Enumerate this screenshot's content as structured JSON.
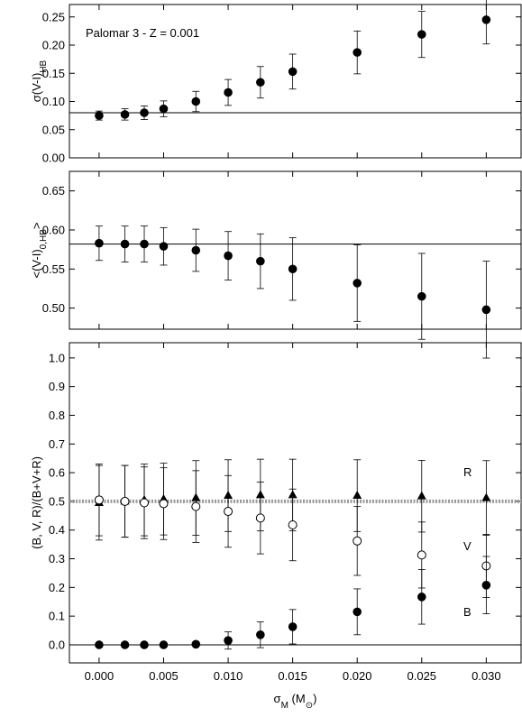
{
  "chart_data": [
    {
      "type": "scatter",
      "annotation": "Palomar 3 - Z = 0.001",
      "ylabel": [
        {
          "text": "σ(V-I)"
        },
        {
          "text": "HB",
          "sub": true
        }
      ],
      "xlim": [
        -0.0023,
        0.0327
      ],
      "xticks": [
        0,
        0.005,
        0.01,
        0.015,
        0.02,
        0.025,
        0.03
      ],
      "ylim": [
        0,
        0.272
      ],
      "yticks": [
        {
          "value": 0,
          "label": "0.00"
        },
        {
          "value": 0.05,
          "label": "0.05"
        },
        {
          "value": 0.1,
          "label": "0.10"
        },
        {
          "value": 0.15,
          "label": "0.15"
        },
        {
          "value": 0.2,
          "label": "0.20"
        },
        {
          "value": 0.25,
          "label": "0.25"
        }
      ],
      "hlines": [
        {
          "value": 0.08,
          "style": "solid"
        }
      ],
      "series": [
        {
          "marker": "filled-circle",
          "color": "#000000",
          "x": [
            0,
            0.002,
            0.0035,
            0.005,
            0.0075,
            0.01,
            0.0125,
            0.015,
            0.02,
            0.025,
            0.03
          ],
          "values": [
            0.075,
            0.077,
            0.08,
            0.087,
            0.1,
            0.116,
            0.134,
            0.153,
            0.187,
            0.219,
            0.245
          ],
          "errors": [
            0.008,
            0.01,
            0.012,
            0.014,
            0.018,
            0.023,
            0.028,
            0.031,
            0.038,
            0.041,
            0.043
          ]
        }
      ]
    },
    {
      "type": "scatter",
      "ylabel": [
        {
          "text": "<(V-I)"
        },
        {
          "text": "0,HB",
          "sub": true
        },
        {
          "text": ">"
        }
      ],
      "xlim": [
        -0.0023,
        0.0327
      ],
      "xticks": [
        0,
        0.005,
        0.01,
        0.015,
        0.02,
        0.025,
        0.03
      ],
      "ylim": [
        0.473,
        0.675
      ],
      "yticks": [
        {
          "value": 0.5,
          "label": "0.50"
        },
        {
          "value": 0.55,
          "label": "0.55"
        },
        {
          "value": 0.6,
          "label": "0.60"
        },
        {
          "value": 0.65,
          "label": "0.65"
        }
      ],
      "hlines": [
        {
          "value": 0.582,
          "style": "solid"
        }
      ],
      "series": [
        {
          "marker": "filled-circle",
          "color": "#000000",
          "x": [
            0,
            0.002,
            0.0035,
            0.005,
            0.0075,
            0.01,
            0.0125,
            0.015,
            0.02,
            0.025,
            0.03
          ],
          "values": [
            0.583,
            0.582,
            0.582,
            0.579,
            0.574,
            0.567,
            0.56,
            0.55,
            0.532,
            0.515,
            0.498
          ],
          "errors": [
            0.022,
            0.023,
            0.023,
            0.024,
            0.027,
            0.031,
            0.035,
            0.04,
            0.049,
            0.055,
            0.062
          ]
        }
      ]
    },
    {
      "type": "scatter",
      "ylabel": [
        {
          "text": "(B, V, R)/(B+V+R)"
        }
      ],
      "xlabel": [
        {
          "text": "σ"
        },
        {
          "text": "M",
          "sub": true
        },
        {
          "text": " (M"
        },
        {
          "text": "⊙",
          "sub": true
        },
        {
          "text": ")"
        }
      ],
      "xlim": [
        -0.0023,
        0.0327
      ],
      "xticks": [
        {
          "value": 0,
          "label": "0.000"
        },
        {
          "value": 0.005,
          "label": "0.005"
        },
        {
          "value": 0.01,
          "label": "0.010"
        },
        {
          "value": 0.015,
          "label": "0.015"
        },
        {
          "value": 0.02,
          "label": "0.020"
        },
        {
          "value": 0.025,
          "label": "0.025"
        },
        {
          "value": 0.03,
          "label": "0.030"
        }
      ],
      "ylim": [
        -0.063,
        1.053
      ],
      "yticks": [
        {
          "value": 0,
          "label": "0.0"
        },
        {
          "value": 0.1,
          "label": "0.1"
        },
        {
          "value": 0.2,
          "label": "0.2"
        },
        {
          "value": 0.3,
          "label": "0.3"
        },
        {
          "value": 0.4,
          "label": "0.4"
        },
        {
          "value": 0.5,
          "label": "0.5"
        },
        {
          "value": 0.6,
          "label": "0.6"
        },
        {
          "value": 0.7,
          "label": "0.7"
        },
        {
          "value": 0.8,
          "label": "0.8"
        },
        {
          "value": 0.9,
          "label": "0.9"
        },
        {
          "value": 1.0,
          "label": "1.0"
        }
      ],
      "hlines": [
        {
          "value": 0.5,
          "style": "dotted"
        },
        {
          "value": 0,
          "style": "solid"
        }
      ],
      "series": [
        {
          "name": "R",
          "marker": "triangle",
          "color": "#000000",
          "x": [
            0,
            0.002,
            0.0035,
            0.005,
            0.0075,
            0.01,
            0.0125,
            0.015,
            0.02,
            0.025,
            0.03
          ],
          "values": [
            0.495,
            0.5,
            0.505,
            0.508,
            0.512,
            0.52,
            0.522,
            0.522,
            0.52,
            0.518,
            0.512
          ],
          "errors": [
            0.13,
            0.125,
            0.125,
            0.125,
            0.13,
            0.125,
            0.125,
            0.125,
            0.125,
            0.125,
            0.13
          ]
        },
        {
          "name": "V",
          "marker": "open-circle",
          "color": "#000000",
          "x": [
            0,
            0.002,
            0.0035,
            0.005,
            0.0075,
            0.01,
            0.0125,
            0.015,
            0.02,
            0.025,
            0.03
          ],
          "values": [
            0.505,
            0.5,
            0.495,
            0.492,
            0.482,
            0.465,
            0.442,
            0.418,
            0.362,
            0.313,
            0.275
          ],
          "errors": [
            0.125,
            0.125,
            0.125,
            0.125,
            0.125,
            0.125,
            0.125,
            0.125,
            0.12,
            0.115,
            0.11
          ]
        },
        {
          "name": "B",
          "marker": "filled-circle",
          "color": "#000000",
          "x": [
            0,
            0.002,
            0.0035,
            0.005,
            0.0075,
            0.01,
            0.0125,
            0.015,
            0.02,
            0.025,
            0.03
          ],
          "values": [
            0,
            0,
            0,
            0,
            0.002,
            0.015,
            0.035,
            0.063,
            0.115,
            0.167,
            0.208
          ],
          "errors": [
            0,
            0,
            0,
            0,
            0.005,
            0.03,
            0.045,
            0.06,
            0.08,
            0.095,
            0.1
          ]
        }
      ]
    }
  ]
}
